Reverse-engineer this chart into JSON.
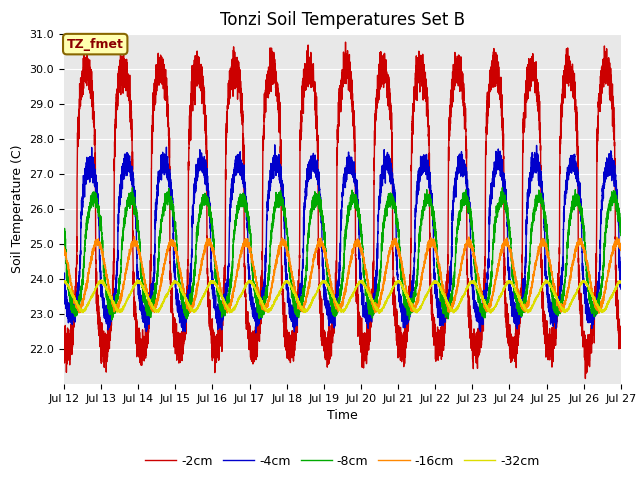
{
  "title": "Tonzi Soil Temperatures Set B",
  "ylabel": "Soil Temperature (C)",
  "xlabel": "Time",
  "ylim": [
    21.0,
    31.0
  ],
  "ytick_min": 22.0,
  "ytick_max": 31.0,
  "ytick_step": 1.0,
  "xtick_labels": [
    "Jul 12",
    "Jul 13",
    "Jul 14",
    "Jul 15",
    "Jul 16",
    "Jul 17",
    "Jul 18",
    "Jul 19",
    "Jul 20",
    "Jul 21",
    "Jul 22",
    "Jul 23",
    "Jul 24",
    "Jul 25",
    "Jul 26",
    "Jul 27"
  ],
  "series": [
    {
      "label": "-2cm",
      "color": "#cc0000",
      "mean": 26.0,
      "amplitude": 4.0,
      "phase_shift": 0.35,
      "sharp": 3.0,
      "noise": 0.25
    },
    {
      "label": "-4cm",
      "color": "#0000cc",
      "mean": 25.1,
      "amplitude": 2.2,
      "phase_shift": 0.45,
      "sharp": 2.0,
      "noise": 0.15
    },
    {
      "label": "-8cm",
      "color": "#00aa00",
      "mean": 24.7,
      "amplitude": 1.6,
      "phase_shift": 0.55,
      "sharp": 1.5,
      "noise": 0.1
    },
    {
      "label": "-16cm",
      "color": "#ff8800",
      "mean": 24.1,
      "amplitude": 0.95,
      "phase_shift": 0.65,
      "sharp": 1.0,
      "noise": 0.05
    },
    {
      "label": "-32cm",
      "color": "#dddd00",
      "mean": 23.5,
      "amplitude": 0.42,
      "phase_shift": 0.75,
      "sharp": 0.8,
      "noise": 0.02
    }
  ],
  "n_points": 7200,
  "n_days": 15,
  "annotation_text": "TZ_fmet",
  "plot_bg_color": "#e8e8e8",
  "fig_bg_color": "#ffffff",
  "title_fontsize": 12,
  "axis_label_fontsize": 9,
  "tick_fontsize": 8,
  "legend_fontsize": 9,
  "line_width": 1.0
}
